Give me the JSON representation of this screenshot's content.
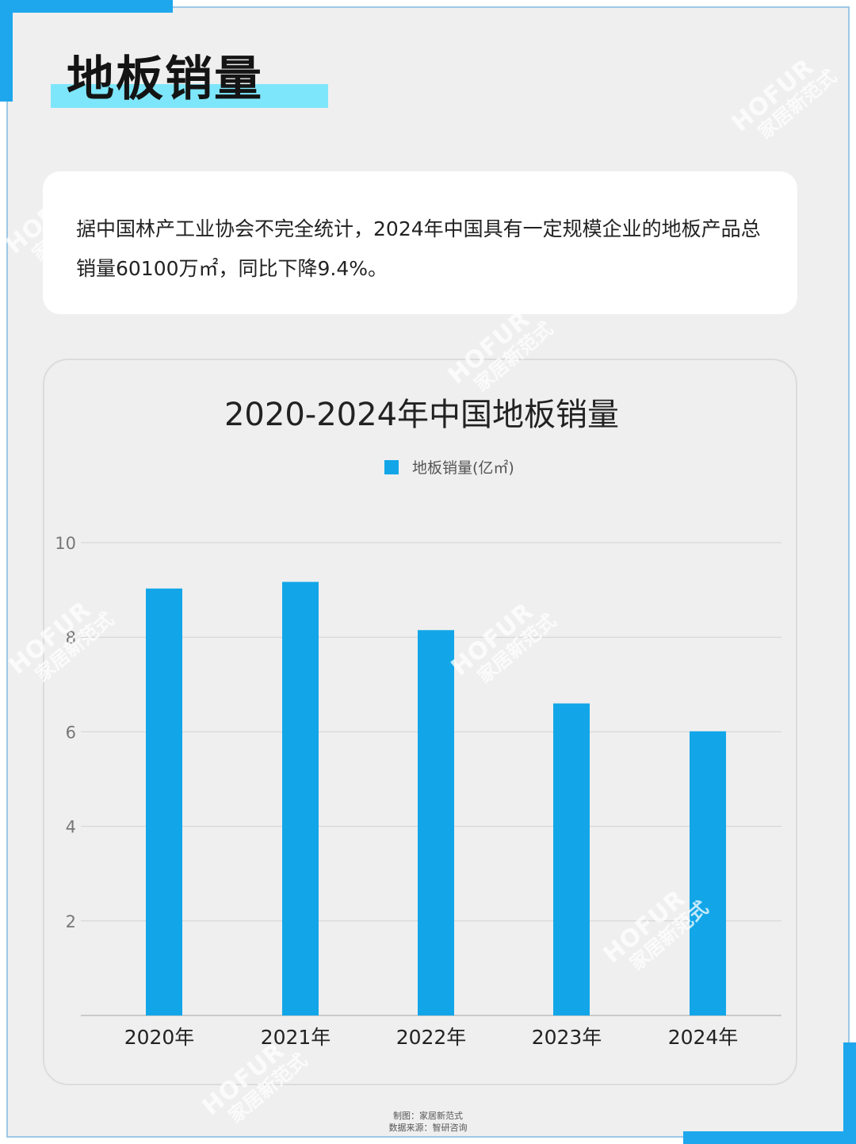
{
  "heading": "地板销量",
  "description": "据中国林产工业协会不完全统计，2024年中国具有一定规模企业的地板产品总销量60100万㎡，同比下降9.4%。",
  "watermark": {
    "line1": "HOFUR",
    "line2": "家居新范式"
  },
  "footer": {
    "line1": "制图：家居新范式",
    "line2": "数据来源：智研咨询"
  },
  "colors": {
    "bar": "#12a6e8",
    "accent": "#1ea7ec",
    "highlight": "#7ee6fa"
  },
  "chart_data": {
    "type": "bar",
    "title": "2020-2024年中国地板销量",
    "categories": [
      "2020年",
      "2021年",
      "2022年",
      "2023年",
      "2024年"
    ],
    "series": [
      {
        "name": "地板销量(亿㎡)",
        "values": [
          9.03,
          9.17,
          8.15,
          6.6,
          6.01
        ]
      }
    ],
    "yticks": [
      "2",
      "4",
      "6",
      "8",
      "10"
    ],
    "ylim": [
      0,
      10
    ],
    "grid": true,
    "legend": "top-center"
  }
}
